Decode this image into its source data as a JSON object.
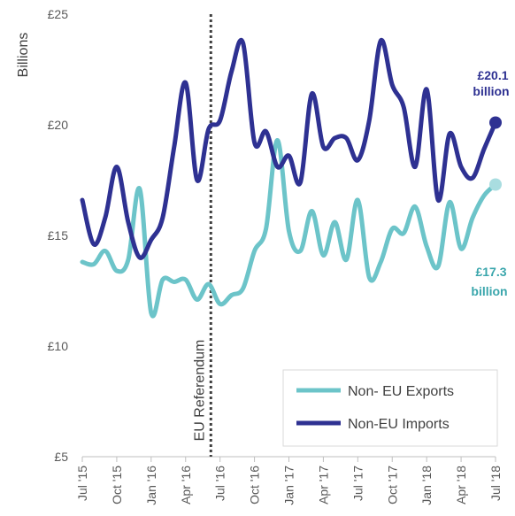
{
  "chart_data": {
    "type": "line",
    "title": "",
    "ylabel": "Billions",
    "xlabel": "",
    "ylim": [
      5,
      25
    ],
    "y_ticks": [
      5,
      10,
      15,
      20,
      25
    ],
    "y_tick_labels": [
      "£5",
      "£10",
      "£15",
      "£20",
      "£25"
    ],
    "x_tick_labels": [
      "Jul '15",
      "Oct '15",
      "Jan '16",
      "Apr '16",
      "Jul '16",
      "Oct '16",
      "Jan '17",
      "Apr '17",
      "Jul '17",
      "Oct '17",
      "Jan '18",
      "Apr '18",
      "Jul '18"
    ],
    "months": [
      "Jul 2015",
      "Aug 2015",
      "Sep 2015",
      "Oct 2015",
      "Nov 2015",
      "Dec 2015",
      "Jan 2016",
      "Feb 2016",
      "Mar 2016",
      "Apr 2016",
      "May 2016",
      "Jun 2016",
      "Jul 2016",
      "Aug 2016",
      "Sep 2016",
      "Oct 2016",
      "Nov 2016",
      "Dec 2016",
      "Jan 2017",
      "Feb 2017",
      "Mar 2017",
      "Apr 2017",
      "May 2017",
      "Jun 2017",
      "Jul 2017",
      "Aug 2017",
      "Sep 2017",
      "Oct 2017",
      "Nov 2017",
      "Dec 2017",
      "Jan 2018",
      "Feb 2018",
      "Mar 2018",
      "Apr 2018",
      "May 2018",
      "Jun 2018",
      "Jul 2018"
    ],
    "series": [
      {
        "name": "Non- EU Exports",
        "color": "#6cc4c9",
        "values": [
          13.8,
          13.7,
          14.3,
          13.4,
          13.9,
          17.1,
          11.5,
          13.0,
          12.9,
          13.0,
          12.1,
          12.8,
          11.9,
          12.3,
          12.6,
          14.3,
          15.3,
          19.3,
          15.2,
          14.3,
          16.1,
          14.1,
          15.6,
          13.9,
          16.6,
          13.1,
          13.8,
          15.3,
          15.1,
          16.3,
          14.5,
          13.6,
          16.5,
          14.4,
          15.8,
          16.8,
          17.3
        ]
      },
      {
        "name": "Non-EU Imports",
        "color": "#2e3192",
        "values": [
          16.6,
          14.6,
          15.8,
          18.1,
          15.6,
          14.0,
          14.8,
          15.8,
          19.0,
          21.9,
          17.5,
          19.8,
          20.2,
          22.4,
          23.7,
          19.2,
          19.7,
          18.1,
          18.6,
          17.4,
          21.4,
          19.0,
          19.4,
          19.4,
          18.4,
          20.2,
          23.8,
          21.8,
          20.8,
          18.1,
          21.6,
          16.6,
          19.6,
          18.1,
          17.6,
          18.9,
          20.1
        ]
      }
    ],
    "annotations": {
      "referendum_label": "EU Referendum",
      "referendum_month": "Jun 2016",
      "imports_end_line1": "£20.1",
      "imports_end_line2": "billion",
      "exports_end_line1": "£17.3",
      "exports_end_line2": "billion"
    },
    "legend": {
      "placement": "bottom-right"
    },
    "grid": false
  }
}
